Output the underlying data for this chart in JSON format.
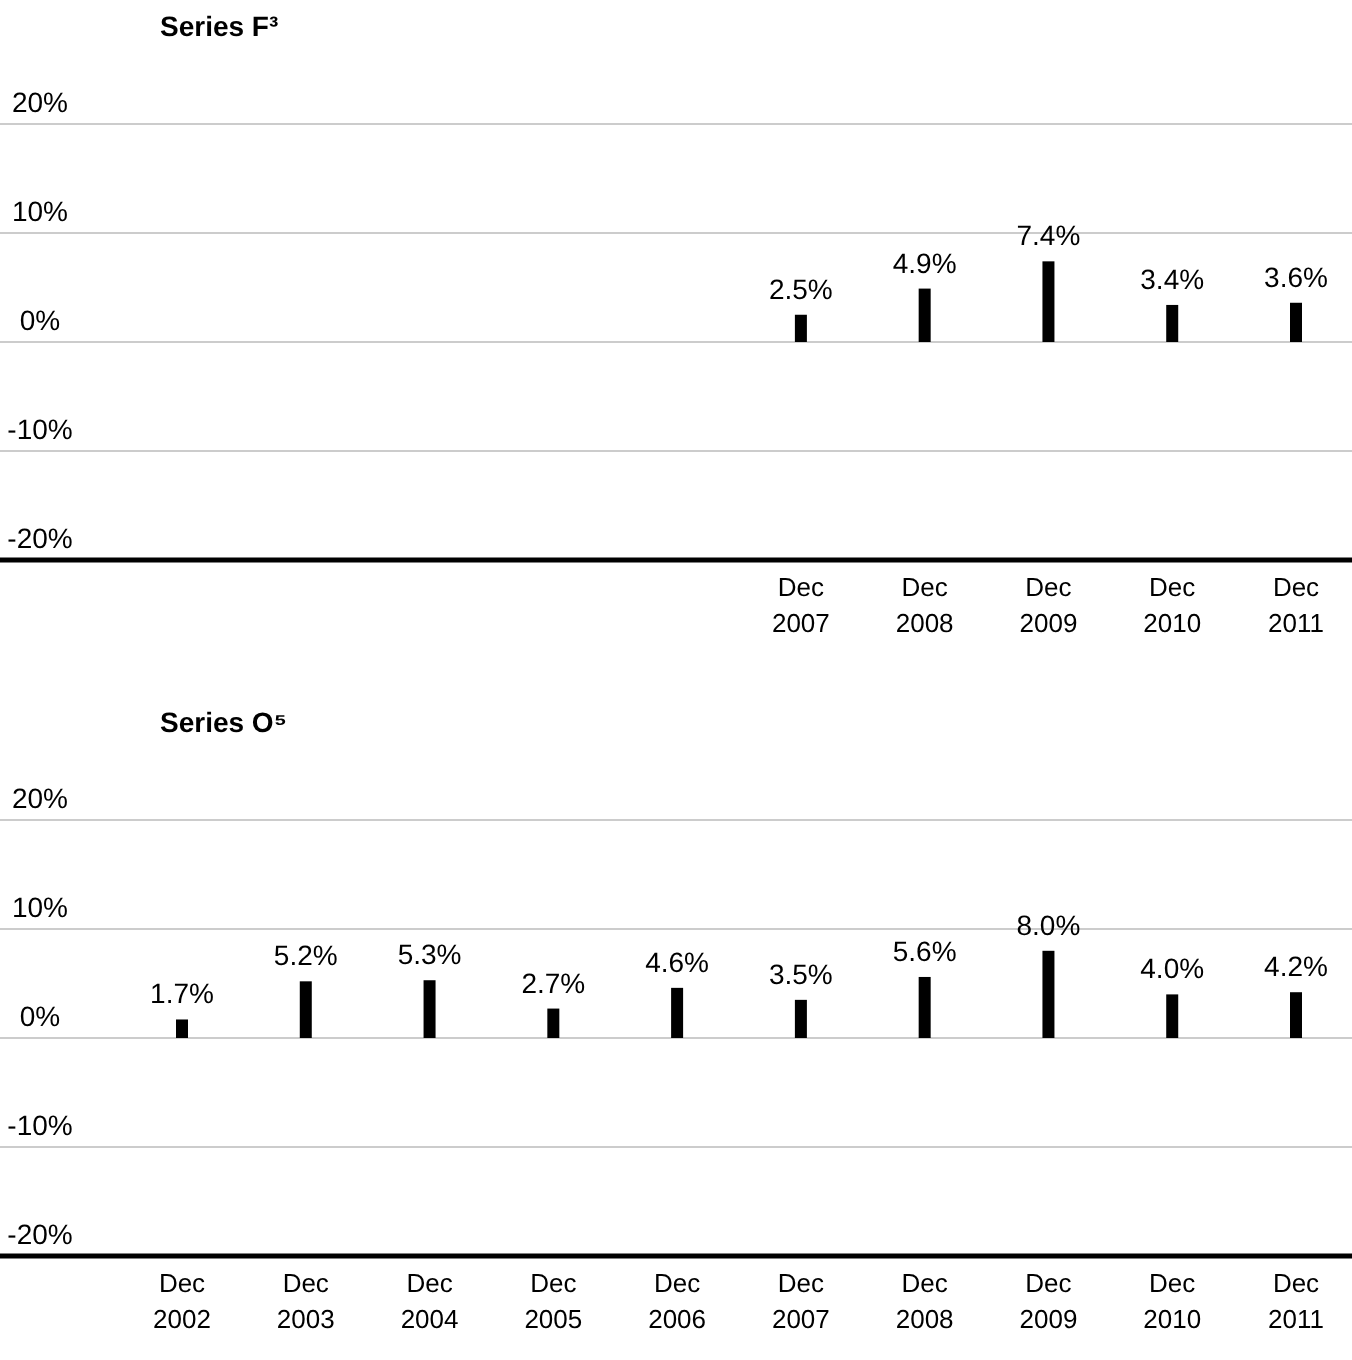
{
  "chart_data": [
    {
      "type": "bar",
      "title": "Series F³",
      "categories": [
        null,
        null,
        null,
        null,
        null,
        "Dec 2007",
        "Dec 2008",
        "Dec 2009",
        "Dec 2010",
        "Dec 2011"
      ],
      "series": [
        {
          "color": "#000000",
          "values": [
            null,
            null,
            null,
            null,
            null,
            2.5,
            4.9,
            7.4,
            3.4,
            3.6
          ],
          "value_labels": [
            null,
            null,
            null,
            null,
            null,
            "2.5%",
            "4.9%",
            "7.4%",
            "3.4%",
            "3.6%"
          ]
        }
      ],
      "ylim": [
        -20,
        20
      ],
      "yticks": [
        {
          "value": -20,
          "label": "-20%"
        },
        {
          "value": -10,
          "label": "-10%"
        },
        {
          "value": 0,
          "label": "0%"
        },
        {
          "value": 10,
          "label": "10%"
        },
        {
          "value": 20,
          "label": "20%"
        }
      ],
      "grid": "y"
    },
    {
      "type": "bar",
      "title": "Series O⁵",
      "categories": [
        "Dec 2002",
        "Dec 2003",
        "Dec 2004",
        "Dec 2005",
        "Dec 2006",
        "Dec 2007",
        "Dec 2008",
        "Dec 2009",
        "Dec 2010",
        "Dec 2011"
      ],
      "series": [
        {
          "color": "#000000",
          "values": [
            1.7,
            5.2,
            5.3,
            2.7,
            4.6,
            3.5,
            5.6,
            8.0,
            4.0,
            4.2
          ],
          "value_labels": [
            "1.7%",
            "5.2%",
            "5.3%",
            "2.7%",
            "4.6%",
            "3.5%",
            "5.6%",
            "8.0%",
            "4.0%",
            "4.2%"
          ]
        }
      ],
      "ylim": [
        -20,
        20
      ],
      "yticks": [
        {
          "value": -20,
          "label": "-20%"
        },
        {
          "value": -10,
          "label": "-10%"
        },
        {
          "value": 0,
          "label": "0%"
        },
        {
          "value": 10,
          "label": "10%"
        },
        {
          "value": 20,
          "label": "20%"
        }
      ],
      "grid": "y"
    }
  ]
}
